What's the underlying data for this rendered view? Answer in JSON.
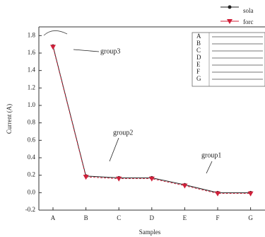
{
  "chart_data": {
    "type": "line",
    "y_label": "Current (A)",
    "x_label": "Samples",
    "categories": [
      "A",
      "B",
      "C",
      "D",
      "E",
      "F",
      "G"
    ],
    "series": [
      {
        "name": "sola",
        "color": "#222222",
        "values": [
          1.68,
          0.19,
          0.17,
          0.17,
          0.09,
          0.0,
          0.0
        ]
      },
      {
        "name": "forc",
        "color": "#d0203a",
        "values": [
          1.67,
          0.18,
          0.16,
          0.16,
          0.08,
          -0.01,
          -0.01
        ]
      }
    ],
    "ylim": [
      -0.2,
      1.9
    ],
    "yticks": [
      -0.2,
      {
        "value": 0,
        "label": "0.0"
      },
      0.2,
      0.4,
      0.6,
      0.8,
      {
        "value": 1,
        "label": "1.0"
      },
      1.2,
      1.4,
      1.6,
      1.8
    ],
    "annotations": [
      "group3",
      "group2",
      "group1"
    ]
  }
}
